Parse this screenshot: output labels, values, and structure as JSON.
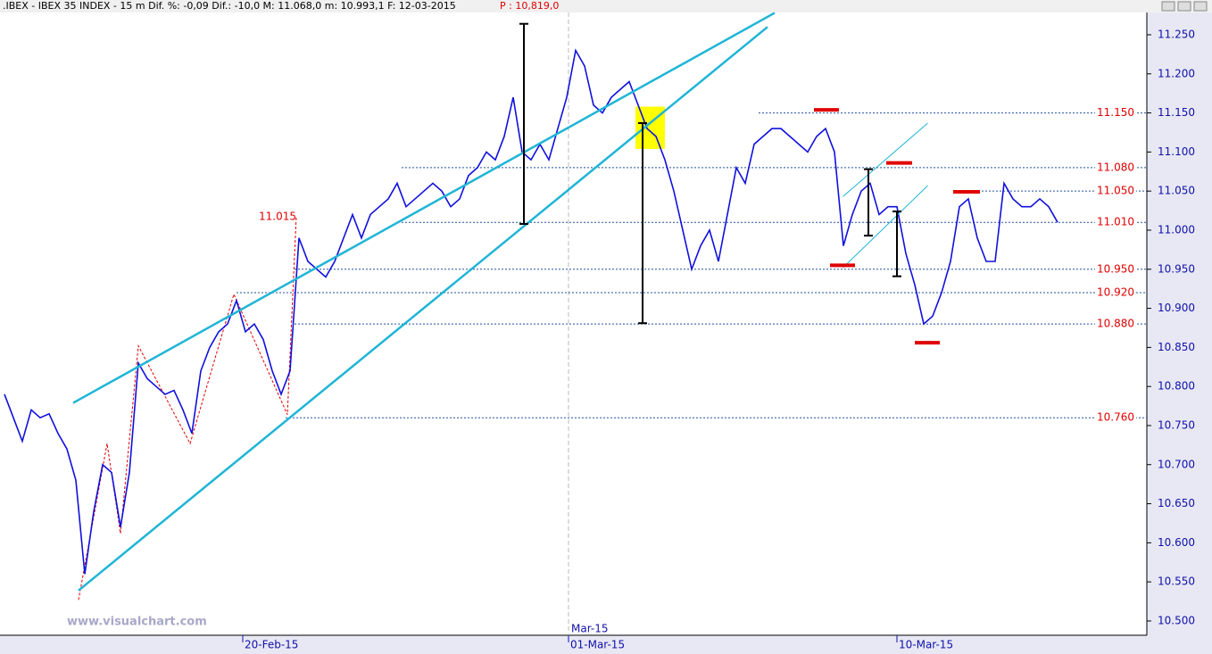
{
  "chart_data": {
    "type": "line",
    "title": ".IBEX - IBEX 35 INDEX - 15 m Dif. %: -0,09 Dif.: -10,0 M: 11.068,0 m: 10.993,1 F: 12-03-2015",
    "price_label": "P : 10,819,0",
    "watermark": "www.visualchart.com",
    "period_label": "Mar-15",
    "annotation": "11.015",
    "series": [
      {
        "name": "IBEX 35",
        "color": "#1010dd",
        "values": [
          10790,
          10760,
          10730,
          10770,
          10760,
          10765,
          10740,
          10720,
          10680,
          10560,
          10640,
          10700,
          10690,
          10620,
          10690,
          10830,
          10810,
          10800,
          10790,
          10795,
          10770,
          10740,
          10820,
          10850,
          10870,
          10880,
          10910,
          10870,
          10880,
          10860,
          10820,
          10790,
          10820,
          10990,
          10960,
          10950,
          10940,
          10960,
          10990,
          11020,
          10990,
          11020,
          11030,
          11040,
          11060,
          11030,
          11040,
          11050,
          11060,
          11050,
          11030,
          11040,
          11070,
          11080,
          11100,
          11090,
          11120,
          11170,
          11100,
          11090,
          11110,
          11090,
          11130,
          11170,
          11230,
          11210,
          11160,
          11150,
          11170,
          11180,
          11190,
          11160,
          11130,
          11120,
          11090,
          11050,
          11000,
          10950,
          10980,
          11000,
          10960,
          11020,
          11080,
          11060,
          11110,
          11120,
          11130,
          11130,
          11120,
          11110,
          11100,
          11120,
          11130,
          11100,
          10980,
          11020,
          11050,
          11060,
          11020,
          11030,
          11030,
          10970,
          10930,
          10880,
          10890,
          10920,
          10960,
          11030,
          11040,
          10990,
          10960,
          10960,
          11060,
          11040,
          11030,
          11030,
          11040,
          11030,
          11010
        ]
      }
    ],
    "xlim": [
      -0.5,
      128
    ],
    "xticks": [
      {
        "value": 26.7,
        "label": "20-Feb-15"
      },
      {
        "value": 63.2,
        "label": "01-Mar-15"
      },
      {
        "value": 100,
        "label": "10-Mar-15"
      }
    ],
    "ylim": [
      10481.7,
      11278.5
    ],
    "yticks": [
      {
        "value": 10500,
        "label": "10.500"
      },
      {
        "value": 10550,
        "label": "10.550"
      },
      {
        "value": 10600,
        "label": "10.600"
      },
      {
        "value": 10650,
        "label": "10.650"
      },
      {
        "value": 10700,
        "label": "10.700"
      },
      {
        "value": 10750,
        "label": "10.750"
      },
      {
        "value": 10800,
        "label": "10.800"
      },
      {
        "value": 10850,
        "label": "10.850"
      },
      {
        "value": 10900,
        "label": "10.900"
      },
      {
        "value": 10950,
        "label": "10.950"
      },
      {
        "value": 11000,
        "label": "11.000"
      },
      {
        "value": 11050,
        "label": "11.050"
      },
      {
        "value": 11100,
        "label": "11.100"
      },
      {
        "value": 11150,
        "label": "11.150"
      },
      {
        "value": 11200,
        "label": "11.200"
      },
      {
        "value": 11250,
        "label": "11.250"
      }
    ],
    "levels": [
      {
        "value": 11150,
        "label": "11.150",
        "x0": 84.5
      },
      {
        "value": 11080,
        "label": "11.080",
        "x0": 44.5
      },
      {
        "value": 11050,
        "label": "11.050",
        "x0": 109.5
      },
      {
        "value": 11010,
        "label": "11.010",
        "x0": 44.5
      },
      {
        "value": 10950,
        "label": "10.950",
        "x0": 32.5
      },
      {
        "value": 10920,
        "label": "10.920",
        "x0": 26
      },
      {
        "value": 10880,
        "label": "10.880",
        "x0": 32.5
      },
      {
        "value": 10760,
        "label": "10.760",
        "x0": 31.5
      }
    ],
    "trendlines": [
      {
        "points": [
          [
            7.7,
            10779
          ],
          [
            86.3,
            11278
          ]
        ],
        "color": "#1fb5d6",
        "width": 2.5
      },
      {
        "points": [
          [
            8.3,
            10539
          ],
          [
            85.5,
            11260
          ]
        ],
        "color": "#1fb5d6",
        "width": 2.5
      },
      {
        "points": [
          [
            93.95,
            11043
          ],
          [
            103.45,
            11137
          ]
        ],
        "color": "#1fb5d6",
        "width": 1
      },
      {
        "points": [
          [
            93.95,
            10952
          ],
          [
            103.45,
            11057
          ]
        ],
        "color": "#1fb5d6",
        "width": 1
      }
    ],
    "arrows": [
      {
        "x": 58.2,
        "from": 11264,
        "to": 11008
      },
      {
        "x": 71.5,
        "from": 11137,
        "to": 10881
      },
      {
        "x": 96.8,
        "from": 11078,
        "to": 10993
      },
      {
        "x": 100,
        "from": 11024,
        "to": 10941
      }
    ],
    "marks": [
      {
        "x0": 90.7,
        "x1": 93.5,
        "value": 11154
      },
      {
        "x0": 98.8,
        "x1": 101.7,
        "value": 11086
      },
      {
        "x0": 106.3,
        "x1": 109.3,
        "value": 11049
      },
      {
        "x0": 92.5,
        "x1": 95.3,
        "value": 10955
      },
      {
        "x0": 102,
        "x1": 104.8,
        "value": 10856
      }
    ],
    "highlight": {
      "x0": 70.7,
      "x1": 74,
      "top": 11158,
      "bottom": 11104
    },
    "zigzag": [
      [
        8.3,
        10527
      ],
      [
        11.5,
        10727
      ],
      [
        13.0,
        10612
      ],
      [
        15.0,
        10852
      ],
      [
        20.8,
        10727
      ],
      [
        25.7,
        10918
      ],
      [
        31.7,
        10764
      ],
      [
        32.7,
        11018
      ]
    ]
  }
}
